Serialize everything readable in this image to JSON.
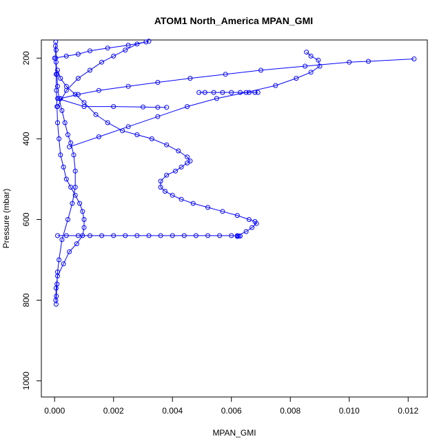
{
  "chart_data": {
    "type": "scatter",
    "title": "ATOM1 North_America MPAN_GMI",
    "xlabel": "MPAN_GMI",
    "ylabel": "Pressure (mbar)",
    "xlim": [
      -0.00045,
      0.01265
    ],
    "ylim": [
      1040,
      155
    ],
    "x_ticks": [
      0.0,
      0.002,
      0.004,
      0.006,
      0.008,
      0.01,
      0.012
    ],
    "x_tick_labels": [
      "0.000",
      "0.002",
      "0.004",
      "0.006",
      "0.008",
      "0.010",
      "0.012"
    ],
    "y_ticks": [
      200,
      400,
      600,
      800,
      1000
    ],
    "y_tick_labels": [
      "200",
      "400",
      "600",
      "800",
      "1000"
    ],
    "y_reversed": true,
    "grid": false,
    "legend": "none",
    "color": "#0000ff",
    "series": [
      {
        "points": [
          [
            5e-05,
            810
          ],
          [
            6e-05,
            790
          ],
          [
            8e-05,
            760
          ],
          [
            0.0001,
            730
          ],
          [
            0.00015,
            700
          ],
          [
            0.00025,
            650
          ],
          [
            0.00045,
            600
          ],
          [
            0.0006,
            560
          ],
          [
            0.0007,
            520
          ],
          [
            0.0007,
            480
          ],
          [
            0.00065,
            440
          ],
          [
            0.00055,
            410
          ],
          [
            0.00045,
            390
          ],
          [
            0.00035,
            360
          ],
          [
            0.00025,
            330
          ],
          [
            0.00015,
            300
          ],
          [
            0.0001,
            270
          ],
          [
            8e-05,
            240
          ],
          [
            5e-05,
            210
          ],
          [
            5e-05,
            180
          ],
          [
            4e-05,
            160
          ]
        ]
      },
      {
        "points": [
          [
            4e-05,
            800
          ],
          [
            5e-05,
            770
          ],
          [
            0.0001,
            740
          ],
          [
            0.0003,
            710
          ],
          [
            0.0005,
            680
          ],
          [
            0.00075,
            660
          ],
          [
            0.00095,
            640
          ],
          [
            0.001,
            620
          ],
          [
            0.001,
            600
          ],
          [
            0.00095,
            580
          ],
          [
            0.00085,
            560
          ],
          [
            0.0007,
            540
          ],
          [
            0.00055,
            520
          ],
          [
            0.0004,
            500
          ],
          [
            0.0003,
            470
          ],
          [
            0.0002,
            440
          ],
          [
            0.00015,
            400
          ],
          [
            0.0001,
            360
          ],
          [
            8e-05,
            320
          ],
          [
            6e-05,
            280
          ],
          [
            5e-05,
            240
          ],
          [
            4e-05,
            200
          ],
          [
            3e-05,
            170
          ]
        ]
      },
      {
        "points": [
          [
            0.0001,
            640
          ],
          [
            0.0004,
            640
          ],
          [
            0.0008,
            640
          ],
          [
            0.0012,
            640
          ],
          [
            0.0016,
            640
          ],
          [
            0.002,
            640
          ],
          [
            0.0024,
            640
          ],
          [
            0.0028,
            640
          ],
          [
            0.0032,
            640
          ],
          [
            0.0036,
            640
          ],
          [
            0.004,
            640
          ],
          [
            0.0044,
            640
          ],
          [
            0.0048,
            640
          ],
          [
            0.0052,
            640
          ],
          [
            0.0056,
            640
          ],
          [
            0.006,
            640
          ],
          [
            0.00625,
            641
          ],
          [
            0.0063,
            641
          ],
          [
            0.0062,
            642
          ]
        ]
      },
      {
        "points": [
          [
            0.0062,
            640
          ],
          [
            0.0065,
            630
          ],
          [
            0.0067,
            620
          ],
          [
            0.00685,
            610
          ],
          [
            0.0068,
            605
          ],
          [
            0.0066,
            600
          ],
          [
            0.0062,
            590
          ],
          [
            0.0057,
            580
          ],
          [
            0.0052,
            570
          ],
          [
            0.0047,
            560
          ],
          [
            0.0043,
            550
          ],
          [
            0.004,
            540
          ],
          [
            0.00375,
            530
          ],
          [
            0.0036,
            520
          ],
          [
            0.0036,
            505
          ],
          [
            0.0038,
            490
          ],
          [
            0.0041,
            480
          ],
          [
            0.0043,
            470
          ],
          [
            0.0045,
            460
          ],
          [
            0.0046,
            455
          ],
          [
            0.0045,
            445
          ],
          [
            0.0042,
            430
          ],
          [
            0.0038,
            415
          ],
          [
            0.0033,
            400
          ],
          [
            0.0028,
            390
          ],
          [
            0.0023,
            380
          ],
          [
            0.0018,
            360
          ],
          [
            0.0014,
            340
          ],
          [
            0.001,
            310
          ],
          [
            0.0007,
            290
          ],
          [
            0.0004,
            270
          ],
          [
            0.0002,
            250
          ],
          [
            0.0001,
            230
          ]
        ]
      },
      {
        "points": [
          [
            0.0001,
            320
          ],
          [
            0.0004,
            280
          ],
          [
            0.0008,
            250
          ],
          [
            0.0012,
            230
          ],
          [
            0.0016,
            210
          ],
          [
            0.002,
            195
          ],
          [
            0.0024,
            180
          ],
          [
            0.0028,
            165
          ],
          [
            0.0032,
            158
          ]
        ]
      },
      {
        "points": [
          [
            0.0005,
            420
          ],
          [
            0.0015,
            395
          ],
          [
            0.0025,
            370
          ],
          [
            0.0035,
            345
          ],
          [
            0.0045,
            320
          ],
          [
            0.0055,
            300
          ],
          [
            0.0065,
            285
          ],
          [
            0.0075,
            268
          ],
          [
            0.0082,
            250
          ],
          [
            0.0087,
            235
          ],
          [
            0.009,
            220
          ],
          [
            0.00895,
            205
          ],
          [
            0.0087,
            195
          ],
          [
            0.00855,
            185
          ]
        ]
      },
      {
        "points": [
          [
            0.0049,
            285
          ],
          [
            0.0051,
            285
          ],
          [
            0.0054,
            285
          ],
          [
            0.0057,
            285
          ],
          [
            0.006,
            285
          ],
          [
            0.0063,
            285
          ],
          [
            0.0066,
            285
          ],
          [
            0.0068,
            285
          ],
          [
            0.0069,
            285
          ]
        ]
      },
      {
        "points": [
          [
            0.0002,
            300
          ],
          [
            0.0008,
            290
          ],
          [
            0.0015,
            280
          ],
          [
            0.0025,
            270
          ],
          [
            0.0035,
            260
          ],
          [
            0.0046,
            250
          ],
          [
            0.0058,
            240
          ],
          [
            0.007,
            230
          ],
          [
            0.0085,
            220
          ],
          [
            0.01,
            210
          ],
          [
            0.01065,
            208
          ],
          [
            0.0122,
            202
          ]
        ]
      },
      {
        "points": [
          [
            0.0001,
            300
          ],
          [
            0.001,
            320
          ],
          [
            0.002,
            320
          ],
          [
            0.003,
            321
          ],
          [
            0.0035,
            322
          ],
          [
            0.0038,
            322
          ]
        ]
      },
      {
        "points": [
          [
            0.0,
            200
          ],
          [
            0.0004,
            195
          ],
          [
            0.0008,
            190
          ],
          [
            0.0012,
            182
          ],
          [
            0.0018,
            175
          ],
          [
            0.0025,
            168
          ],
          [
            0.0031,
            160
          ]
        ]
      }
    ]
  }
}
